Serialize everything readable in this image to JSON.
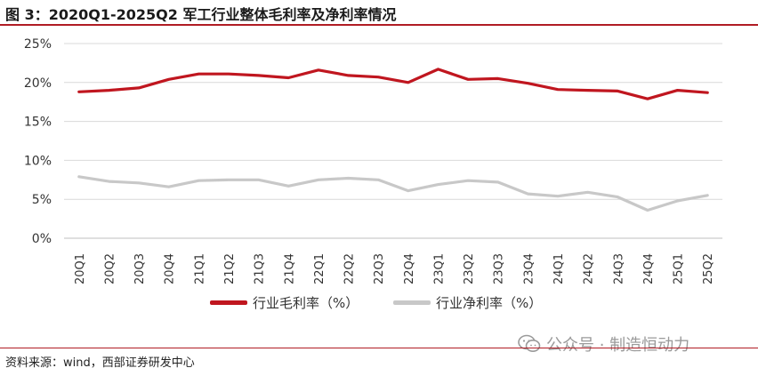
{
  "figure": {
    "title": "图 3：2020Q1-2025Q2 军工行业整体毛利率及净利率情况",
    "source": "资料来源：wind，西部证券研发中心",
    "watermark": "公众号 · 制造恒动力"
  },
  "colors": {
    "gross": "#c0161f",
    "net": "#c8c8c8",
    "grid": "#d9d9d9",
    "accent": "#b01c24"
  },
  "chart_data": {
    "type": "line",
    "title": "",
    "xlabel": "",
    "ylabel": "",
    "categories": [
      "20Q1",
      "20Q2",
      "20Q3",
      "20Q4",
      "21Q1",
      "21Q2",
      "21Q3",
      "21Q4",
      "22Q1",
      "22Q2",
      "22Q3",
      "22Q4",
      "23Q1",
      "23Q2",
      "23Q3",
      "23Q4",
      "24Q1",
      "24Q2",
      "24Q3",
      "24Q4",
      "25Q1",
      "25Q2"
    ],
    "ylim": [
      0,
      25
    ],
    "yticks": [
      "0%",
      "5%",
      "10%",
      "15%",
      "20%",
      "25%"
    ],
    "grid": true,
    "legend_position": "bottom-center",
    "series": [
      {
        "name": "行业毛利率（%）",
        "values": [
          18.8,
          19.0,
          19.3,
          20.4,
          21.1,
          21.1,
          20.9,
          20.6,
          21.6,
          20.9,
          20.7,
          20.0,
          21.7,
          20.4,
          20.5,
          19.9,
          19.1,
          19.0,
          18.9,
          17.9,
          19.0,
          18.7
        ]
      },
      {
        "name": "行业净利率（%）",
        "values": [
          7.9,
          7.3,
          7.1,
          6.6,
          7.4,
          7.5,
          7.5,
          6.7,
          7.5,
          7.7,
          7.5,
          6.1,
          6.9,
          7.4,
          7.2,
          5.7,
          5.4,
          5.9,
          5.3,
          3.6,
          4.8,
          5.5
        ]
      }
    ]
  }
}
